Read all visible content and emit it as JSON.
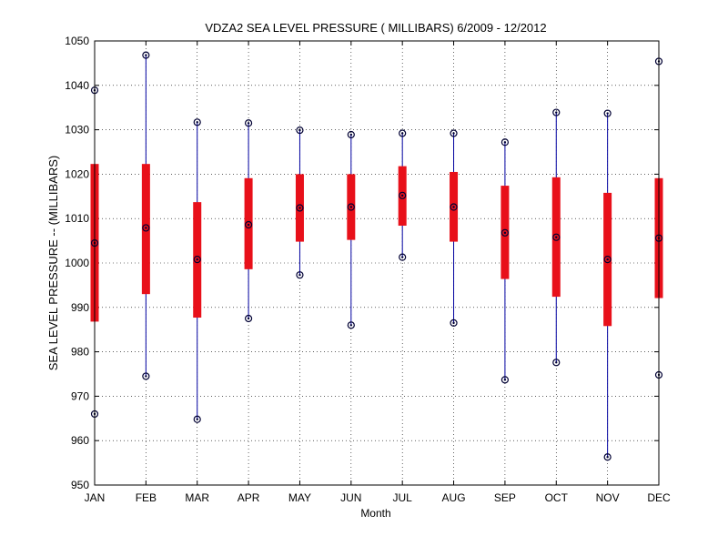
{
  "chart_data": {
    "type": "box",
    "title": "VDZA2  SEA LEVEL PRESSURE ( MILLIBARS) 6/2009 - 12/2012",
    "xlabel": "Month",
    "ylabel": "SEA LEVEL PRESSURE -- (MILLIBARS)",
    "ylim": [
      950,
      1050
    ],
    "yticks": [
      950,
      960,
      970,
      980,
      990,
      1000,
      1010,
      1020,
      1030,
      1040,
      1050
    ],
    "grid": true,
    "categories": [
      "JAN",
      "FEB",
      "MAR",
      "APR",
      "MAY",
      "JUN",
      "JUL",
      "AUG",
      "SEP",
      "OCT",
      "NOV",
      "DEC"
    ],
    "series": [
      {
        "min": [
          966.0,
          974.5,
          964.8,
          987.5,
          997.3,
          986.0,
          1001.3,
          986.5,
          973.7,
          977.6,
          956.3,
          974.8
        ],
        "q1": [
          986.8,
          993.0,
          987.7,
          998.6,
          1004.8,
          1005.2,
          1008.4,
          1004.8,
          996.4,
          992.4,
          985.8,
          992.1
        ],
        "median": [
          1004.5,
          1007.9,
          1000.8,
          1008.6,
          1012.4,
          1012.6,
          1015.2,
          1012.6,
          1006.8,
          1005.8,
          1000.8,
          1005.6
        ],
        "q3": [
          1022.3,
          1022.3,
          1013.7,
          1019.1,
          1020.0,
          1020.0,
          1021.8,
          1020.5,
          1017.4,
          1019.3,
          1015.8,
          1019.1
        ],
        "max": [
          1038.9,
          1046.8,
          1031.7,
          1031.5,
          1029.9,
          1028.9,
          1029.2,
          1029.2,
          1027.2,
          1033.9,
          1033.7,
          1045.4
        ]
      }
    ],
    "colors": {
      "box": "#e8101a",
      "whisker": "#0000a0",
      "marker": "#000033",
      "grid": "#000000",
      "axis": "#000000"
    }
  }
}
